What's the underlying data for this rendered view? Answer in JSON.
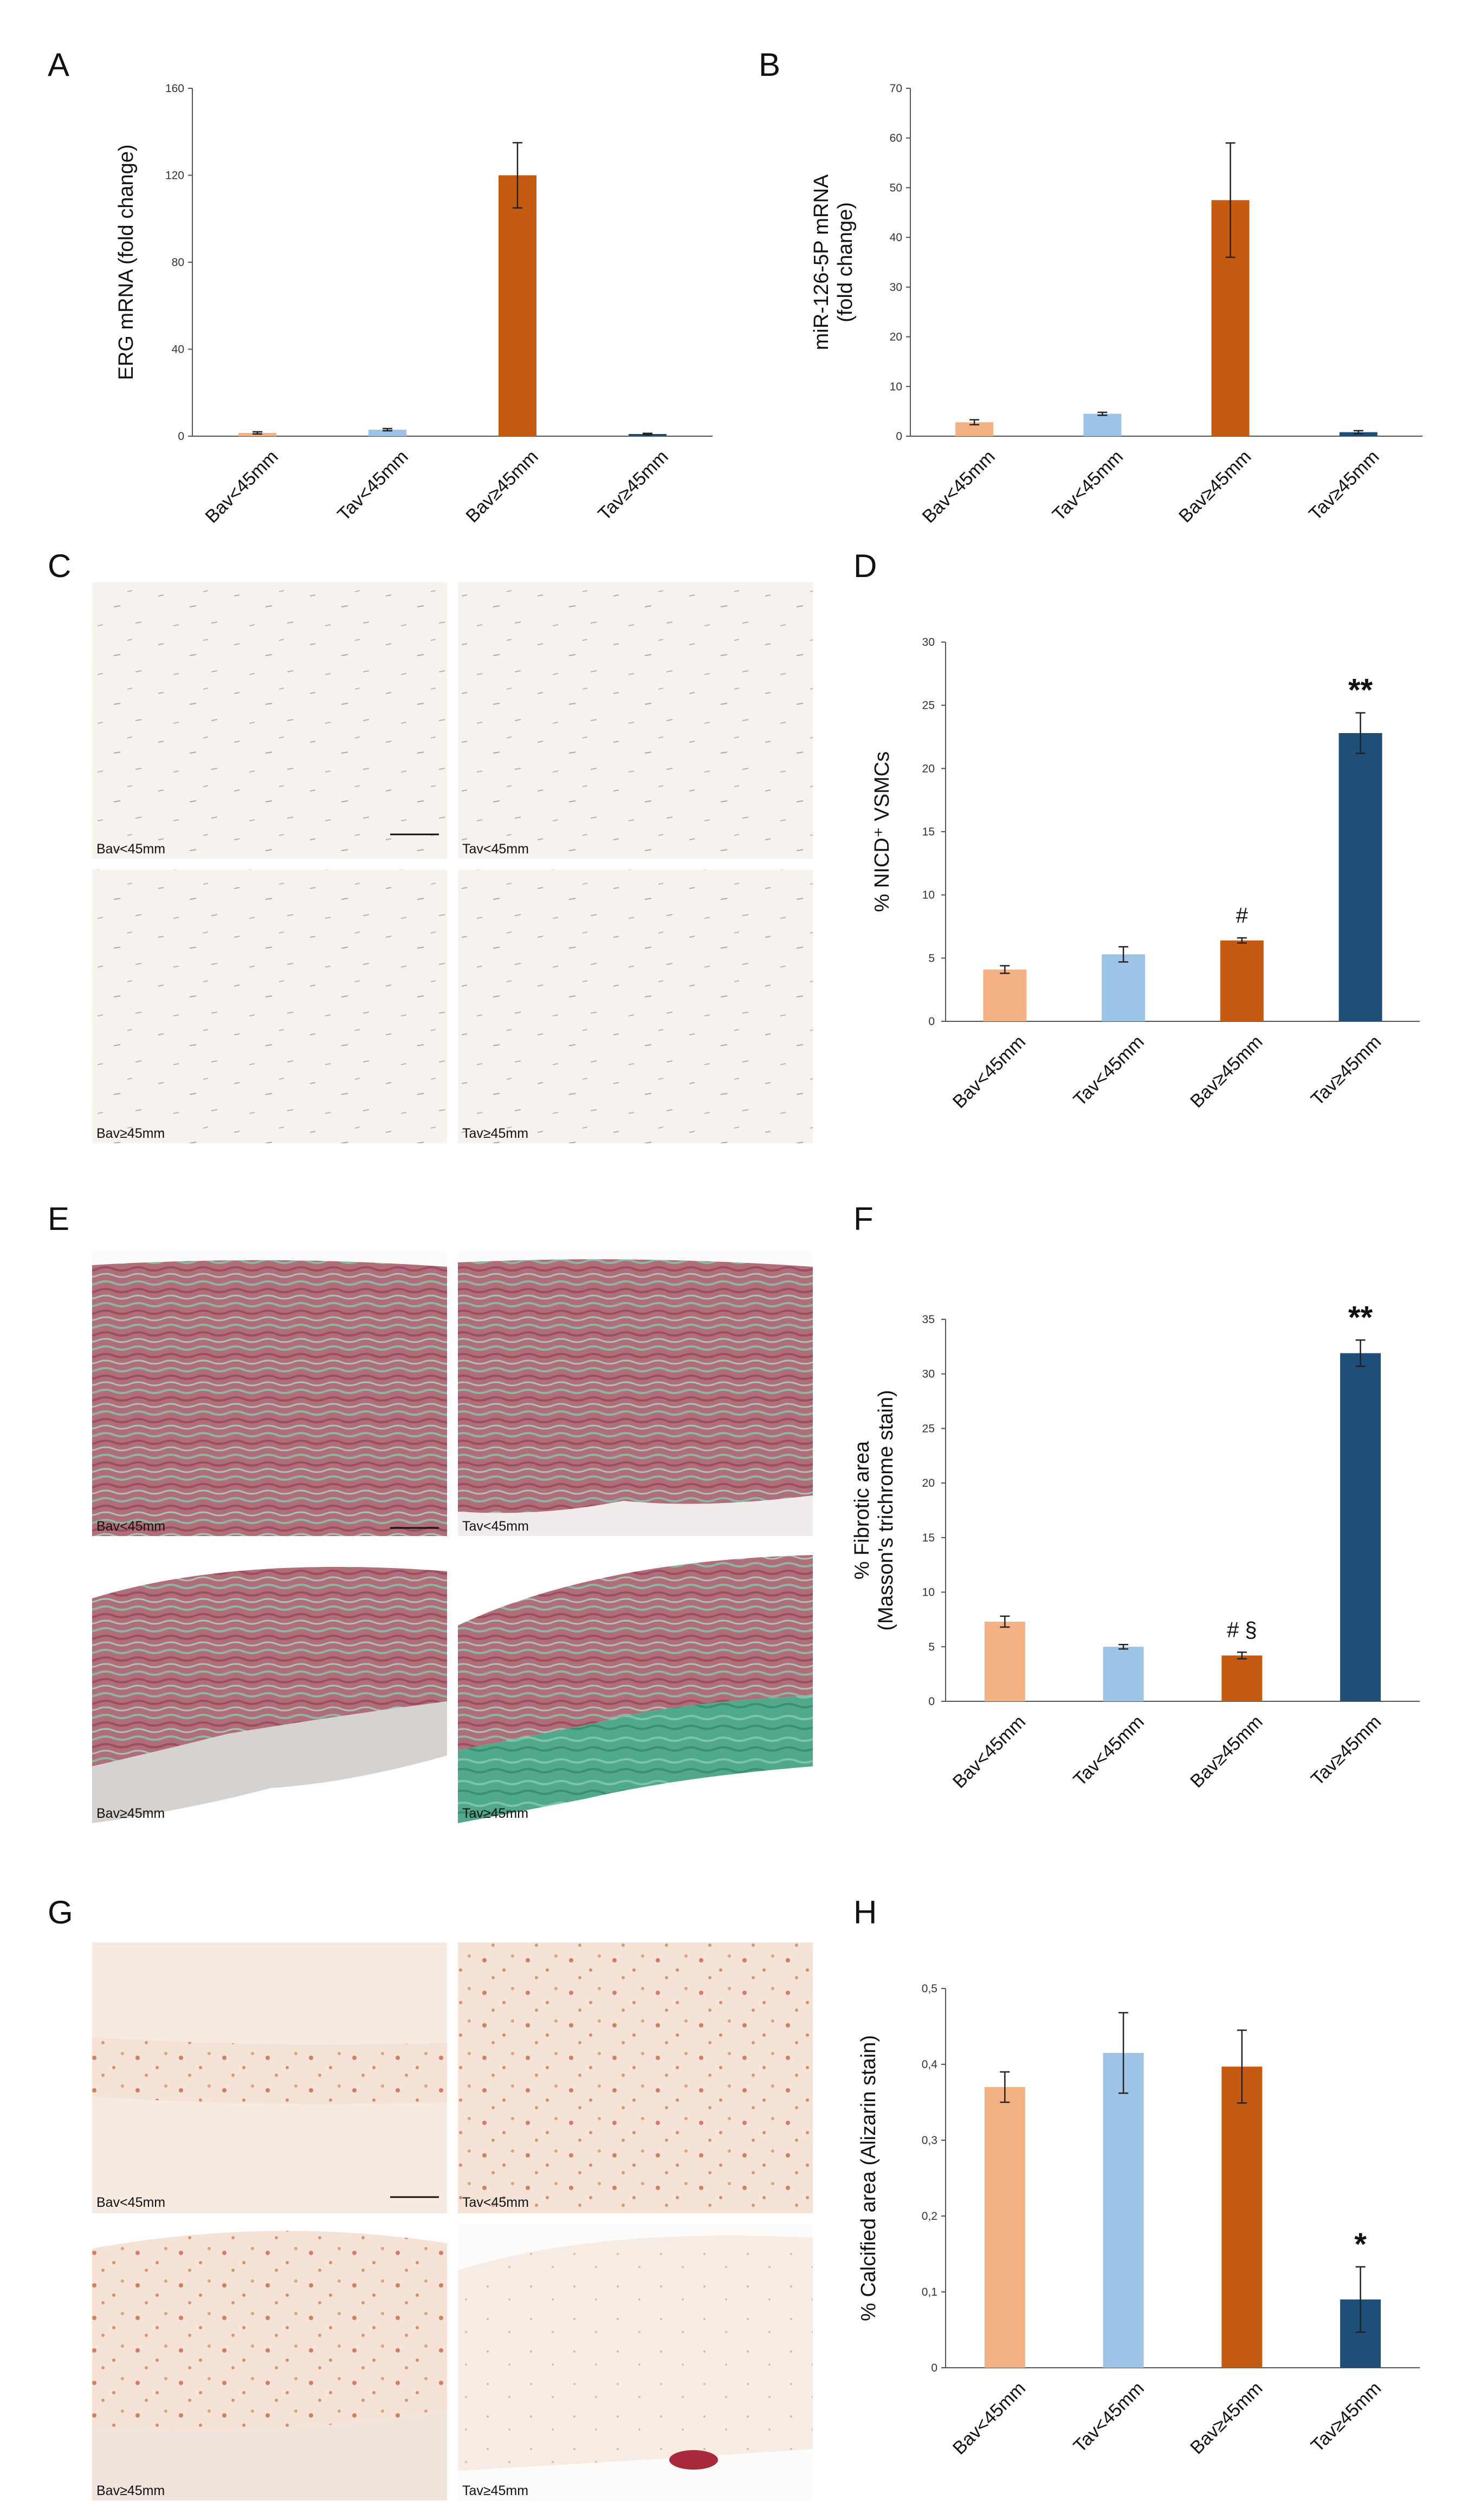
{
  "panels": {
    "A": "A",
    "B": "B",
    "C": "C",
    "D": "D",
    "E": "E",
    "F": "F",
    "G": "G",
    "H": "H"
  },
  "colors": {
    "bav_lt45": "#f4b183",
    "tav_lt45": "#9dc3e6",
    "bav_ge45": "#c55a11",
    "tav_ge45": "#1f4e79"
  },
  "micrographs": {
    "C": {
      "stain": "plain",
      "labels": [
        "Bav<45mm",
        "Tav<45mm",
        "Bav≥45mm",
        "Tav≥45mm"
      ]
    },
    "E": {
      "stain": "masson-trichrome",
      "labels": [
        "Bav<45mm",
        "Tav<45mm",
        "Bav≥45mm",
        "Tav≥45mm"
      ]
    },
    "G": {
      "stain": "alizarin",
      "labels": [
        "Bav<45mm",
        "Tav<45mm",
        "Bav≥45mm",
        "Tav≥45mm"
      ]
    }
  },
  "chart_data": [
    {
      "panel": "A",
      "type": "bar",
      "ylabel": [
        "ERG mRNA (fold change)"
      ],
      "ylim": [
        0,
        160
      ],
      "yticks": [
        0,
        40,
        80,
        120,
        160
      ],
      "categories": [
        "Bav<45mm",
        "Tav<45mm",
        "Bav≥45mm",
        "Tav≥45mm"
      ],
      "values": [
        1.5,
        3,
        120,
        1
      ],
      "errors": [
        0.5,
        0.5,
        15,
        0.3
      ],
      "annotations": [
        "",
        "",
        "",
        ""
      ],
      "annotation_style": "normal"
    },
    {
      "panel": "B",
      "type": "bar",
      "ylabel": [
        "miR-126-5P mRNA",
        "(fold change)"
      ],
      "ylim": [
        0,
        70
      ],
      "yticks": [
        0,
        10,
        20,
        30,
        40,
        50,
        60,
        70
      ],
      "categories": [
        "Bav<45mm",
        "Tav<45mm",
        "Bav≥45mm",
        "Tav≥45mm"
      ],
      "values": [
        2.8,
        4.5,
        47.5,
        0.8
      ],
      "errors": [
        0.5,
        0.3,
        11.5,
        0.3
      ],
      "annotations": [
        "",
        "",
        "",
        ""
      ],
      "annotation_style": "normal"
    },
    {
      "panel": "D",
      "type": "bar",
      "ylabel": [
        "% NICD⁺ VSMCs"
      ],
      "ylim": [
        0,
        30
      ],
      "yticks": [
        0,
        5,
        10,
        15,
        20,
        25,
        30
      ],
      "categories": [
        "Bav<45mm",
        "Tav<45mm",
        "Bav≥45mm",
        "Tav≥45mm"
      ],
      "values": [
        4.1,
        5.3,
        6.4,
        22.8
      ],
      "errors": [
        0.3,
        0.6,
        0.2,
        1.6
      ],
      "annotations": [
        "",
        "",
        "#",
        "**"
      ],
      "annotation_style": "mixed"
    },
    {
      "panel": "F",
      "type": "bar",
      "ylabel": [
        "% Fibrotic area",
        "(Masson's trichrome stain)"
      ],
      "ylim": [
        0,
        35
      ],
      "yticks": [
        0,
        5,
        10,
        15,
        20,
        25,
        30,
        35
      ],
      "categories": [
        "Bav<45mm",
        "Tav<45mm",
        "Bav≥45mm",
        "Tav≥45mm"
      ],
      "values": [
        7.3,
        5.0,
        4.2,
        31.9
      ],
      "errors": [
        0.5,
        0.2,
        0.3,
        1.2
      ],
      "annotations": [
        "",
        "",
        "# §",
        "**"
      ],
      "annotation_style": "mixed"
    },
    {
      "panel": "H",
      "type": "bar",
      "ylabel": [
        "% Calcified area (Alizarin stain)"
      ],
      "ylim": [
        0,
        0.5
      ],
      "yticks": [
        "0",
        "0,1",
        "0,2",
        "0,3",
        "0,4",
        "0,5"
      ],
      "categories": [
        "Bav<45mm",
        "Tav<45mm",
        "Bav≥45mm",
        "Tav≥45mm"
      ],
      "values": [
        0.37,
        0.415,
        0.397,
        0.09
      ],
      "errors": [
        0.02,
        0.053,
        0.048,
        0.043
      ],
      "annotations": [
        "",
        "",
        "",
        "*"
      ],
      "annotation_style": "big"
    }
  ]
}
